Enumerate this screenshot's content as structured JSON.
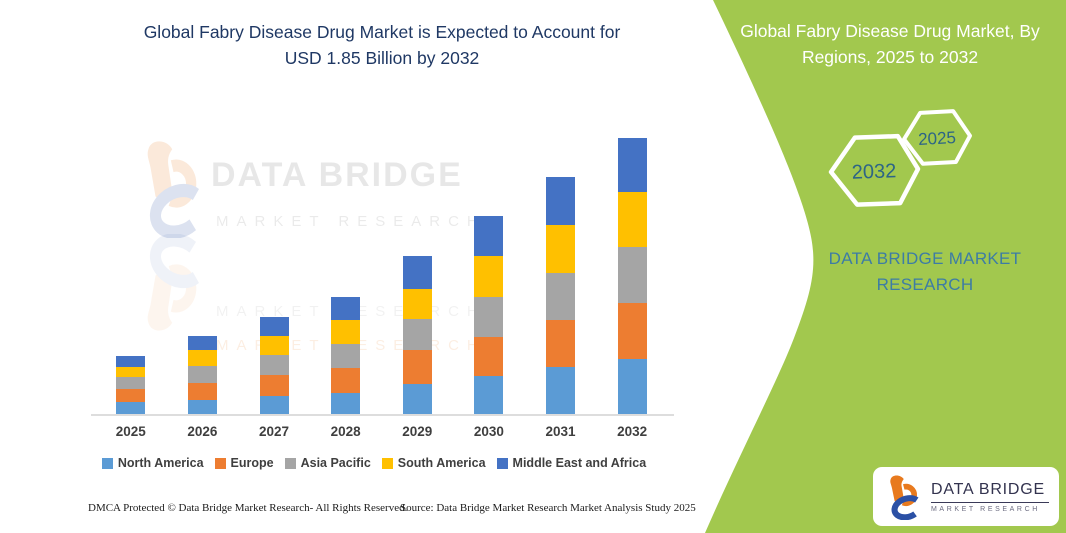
{
  "left": {
    "title": "Global Fabry Disease Drug Market is Expected to Account for USD 1.85 Billion by 2032",
    "footer_dmca": "DMCA Protected © Data Bridge Market Research- All Rights Reserved.",
    "footer_source": "Source: Data Bridge Market Research Market Analysis Study 2025"
  },
  "watermark": {
    "title": "DATA BRIDGE",
    "subtitle": "MARKET RESEARCH"
  },
  "chart_data": {
    "type": "bar",
    "stacked": true,
    "title": "Global Fabry Disease Drug Market is Expected to Account for USD 1.85 Billion by 2032",
    "xlabel": "",
    "ylabel": "",
    "units": "USD Billion",
    "ylim": [
      0,
      1.85
    ],
    "grid": false,
    "legend_position": "bottom",
    "categories": [
      "2025",
      "2026",
      "2027",
      "2028",
      "2029",
      "2030",
      "2031",
      "2032"
    ],
    "series": [
      {
        "name": "North America",
        "color": "#5B9BD5",
        "values": [
          0.089,
          0.1,
          0.129,
          0.149,
          0.207,
          0.261,
          0.319,
          0.372
        ]
      },
      {
        "name": "Europe",
        "color": "#ED7D31",
        "values": [
          0.085,
          0.112,
          0.138,
          0.163,
          0.227,
          0.263,
          0.316,
          0.378
        ]
      },
      {
        "name": "Asia Pacific",
        "color": "#A5A5A5",
        "values": [
          0.078,
          0.112,
          0.132,
          0.162,
          0.205,
          0.263,
          0.316,
          0.37
        ]
      },
      {
        "name": "South America",
        "color": "#FFC000",
        "values": [
          0.067,
          0.107,
          0.129,
          0.16,
          0.201,
          0.276,
          0.319,
          0.372
        ]
      },
      {
        "name": "Middle East and Africa",
        "color": "#4472C4",
        "values": [
          0.076,
          0.098,
          0.129,
          0.152,
          0.223,
          0.263,
          0.319,
          0.357
        ]
      }
    ],
    "totals_estimated": [
      0.4,
      0.53,
      0.66,
      0.79,
      1.06,
      1.33,
      1.59,
      1.85
    ]
  },
  "right_panel": {
    "bg_color": "#A2C84E",
    "title": "Global Fabry Disease Drug Market, By Regions, 2025 to 2032",
    "hexagons": [
      {
        "label": "2032"
      },
      {
        "label": "2025"
      }
    ],
    "brand_text": "DATA BRIDGE MARKET RESEARCH",
    "logo": {
      "name": "DATA BRIDGE",
      "subtitle": "MARKET RESEARCH"
    }
  }
}
